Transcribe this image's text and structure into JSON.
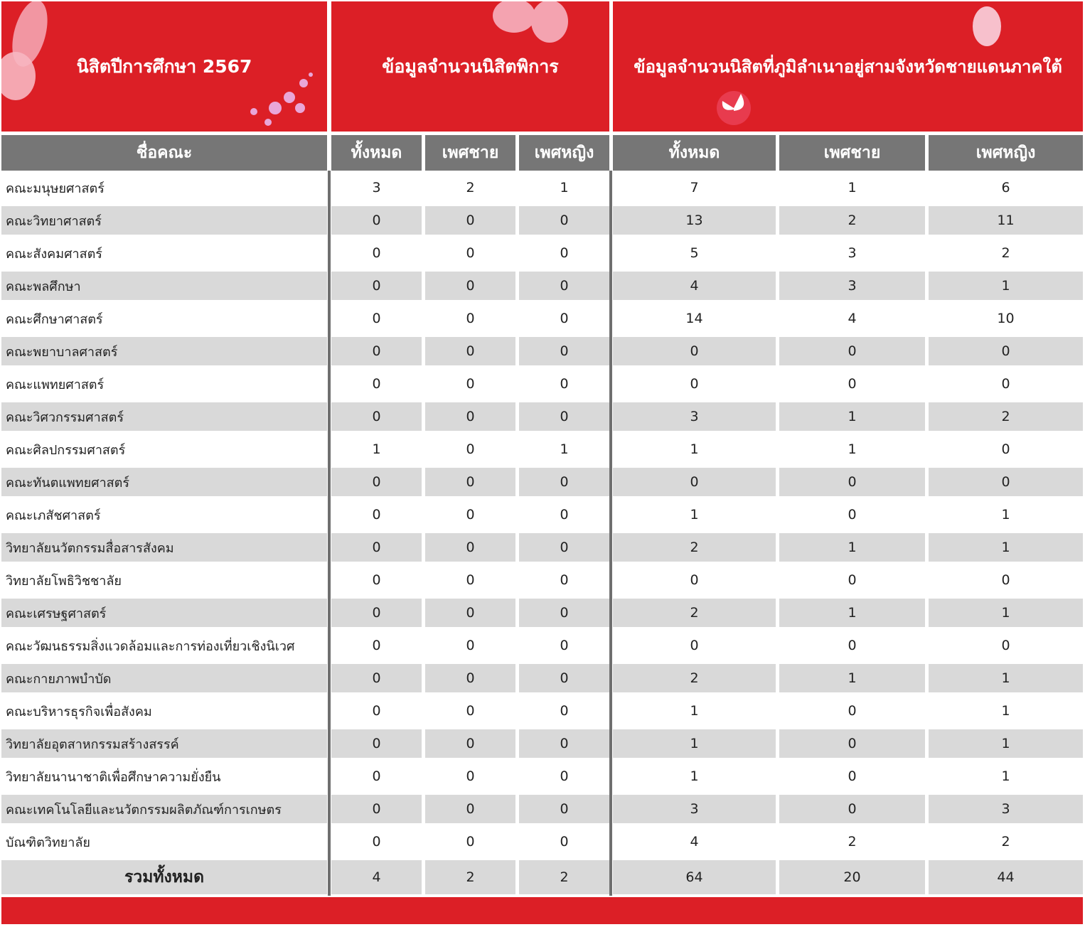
{
  "header": {
    "year_title": "นิสิตปีการศึกษา 2567",
    "disabled_title": "ข้อมูลจำนวนนิสิตพิการ",
    "south_title": "ข้อมูลจำนวนนิสิตที่ภูมิลำเนาอยู่สามจังหวัดชายแดนภาคใต้"
  },
  "columns": {
    "name": "ชื่อคณะ",
    "d_total": "ทั้งหมด",
    "d_male": "เพศชาย",
    "d_female": "เพศหญิง",
    "s_total": "ทั้งหมด",
    "s_male": "เพศชาย",
    "s_female": "เพศหญิง"
  },
  "rows": [
    {
      "name": "คณะมนุษยศาสตร์",
      "d": [
        "3",
        "2",
        "1"
      ],
      "s": [
        "7",
        "1",
        "6"
      ]
    },
    {
      "name": "คณะวิทยาศาสตร์",
      "d": [
        "0",
        "0",
        "0"
      ],
      "s": [
        "13",
        "2",
        "11"
      ]
    },
    {
      "name": "คณะสังคมศาสตร์",
      "d": [
        "0",
        "0",
        "0"
      ],
      "s": [
        "5",
        "3",
        "2"
      ]
    },
    {
      "name": "คณะพลศึกษา",
      "d": [
        "0",
        "0",
        "0"
      ],
      "s": [
        "4",
        "3",
        "1"
      ]
    },
    {
      "name": "คณะศึกษาศาสตร์",
      "d": [
        "0",
        "0",
        "0"
      ],
      "s": [
        "14",
        "4",
        "10"
      ]
    },
    {
      "name": "คณะพยาบาลศาสตร์",
      "d": [
        "0",
        "0",
        "0"
      ],
      "s": [
        "0",
        "0",
        "0"
      ]
    },
    {
      "name": "คณะแพทยศาสตร์",
      "d": [
        "0",
        "0",
        "0"
      ],
      "s": [
        "0",
        "0",
        "0"
      ]
    },
    {
      "name": "คณะวิศวกรรมศาสตร์",
      "d": [
        "0",
        "0",
        "0"
      ],
      "s": [
        "3",
        "1",
        "2"
      ]
    },
    {
      "name": "คณะศิลปกรรมศาสตร์",
      "d": [
        "1",
        "0",
        "1"
      ],
      "s": [
        "1",
        "1",
        "0"
      ]
    },
    {
      "name": "คณะทันตแพทยศาสตร์",
      "d": [
        "0",
        "0",
        "0"
      ],
      "s": [
        "0",
        "0",
        "0"
      ]
    },
    {
      "name": "คณะเภสัชศาสตร์",
      "d": [
        "0",
        "0",
        "0"
      ],
      "s": [
        "1",
        "0",
        "1"
      ]
    },
    {
      "name": "วิทยาลัยนวัตกรรมสื่อสารสังคม",
      "d": [
        "0",
        "0",
        "0"
      ],
      "s": [
        "2",
        "1",
        "1"
      ]
    },
    {
      "name": "วิทยาลัยโพธิวิชชาลัย",
      "d": [
        "0",
        "0",
        "0"
      ],
      "s": [
        "0",
        "0",
        "0"
      ]
    },
    {
      "name": "คณะเศรษฐศาสตร์",
      "d": [
        "0",
        "0",
        "0"
      ],
      "s": [
        "2",
        "1",
        "1"
      ]
    },
    {
      "name": "คณะวัฒนธรรมสิ่งแวดล้อมและการท่องเที่ยวเชิงนิเวศ",
      "d": [
        "0",
        "0",
        "0"
      ],
      "s": [
        "0",
        "0",
        "0"
      ]
    },
    {
      "name": "คณะกายภาพบำบัด",
      "d": [
        "0",
        "0",
        "0"
      ],
      "s": [
        "2",
        "1",
        "1"
      ]
    },
    {
      "name": "คณะบริหารธุรกิจเพื่อสังคม",
      "d": [
        "0",
        "0",
        "0"
      ],
      "s": [
        "1",
        "0",
        "1"
      ]
    },
    {
      "name": "วิทยาลัยอุตสาหกรรมสร้างสรรค์",
      "d": [
        "0",
        "0",
        "0"
      ],
      "s": [
        "1",
        "0",
        "1"
      ]
    },
    {
      "name": "วิทยาลัยนานาชาติเพื่อศึกษาความยั่งยืน",
      "d": [
        "0",
        "0",
        "0"
      ],
      "s": [
        "1",
        "0",
        "1"
      ]
    },
    {
      "name": "คณะเทคโนโลยีและนวัตกรรมผลิตภัณฑ์การเกษตร",
      "d": [
        "0",
        "0",
        "0"
      ],
      "s": [
        "3",
        "0",
        "3"
      ]
    },
    {
      "name": "บัณฑิตวิทยาลัย",
      "d": [
        "0",
        "0",
        "0"
      ],
      "s": [
        "4",
        "2",
        "2"
      ]
    }
  ],
  "total": {
    "name": "รวมทั้งหมด",
    "d": [
      "4",
      "2",
      "2"
    ],
    "s": [
      "64",
      "20",
      "44"
    ]
  },
  "colors": {
    "red": "#dc1f26",
    "gray_header": "#767676",
    "alt_row": "#d9d9d9",
    "butterfly": "#f4a3b0"
  }
}
